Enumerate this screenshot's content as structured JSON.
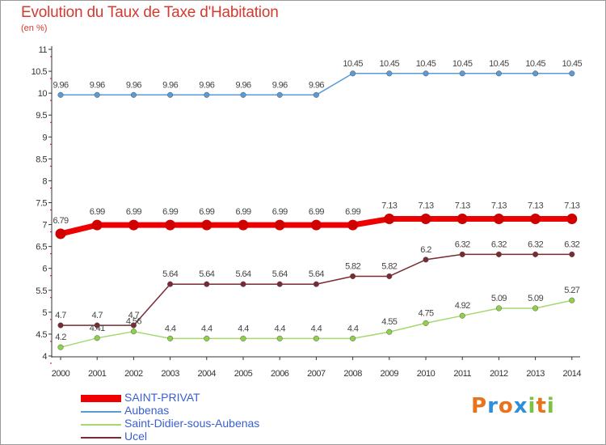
{
  "header": {
    "title": "Evolution du Taux de Taxe d'Habitation",
    "unit_label": "(en %)"
  },
  "chart_data": {
    "type": "line",
    "title": "Evolution du Taux de Taxe d'Habitation",
    "subtitle": "(en %)",
    "xlabel": "",
    "ylabel": "",
    "x": [
      "2000",
      "2001",
      "2002",
      "2003",
      "2004",
      "2005",
      "2006",
      "2007",
      "2008",
      "2009",
      "2010",
      "2011",
      "2012",
      "2013",
      "2014"
    ],
    "ylim": [
      4,
      11
    ],
    "yticks": [
      4,
      4.5,
      5,
      5.5,
      6,
      6.5,
      7,
      7.5,
      8,
      8.5,
      9,
      9.5,
      10,
      10.5,
      11
    ],
    "ytick_labels": [
      "4",
      "4.5",
      "5",
      "5.5",
      "6",
      "6.5",
      "7",
      "7.5",
      "8",
      "8.5",
      "9",
      "9.5",
      "10",
      "10.5",
      "11"
    ],
    "grid": false,
    "legend_position": "bottom-left",
    "series": [
      {
        "name": "Aubenas",
        "color": "#5b9bd5",
        "marker_fill": "#5b9bd5",
        "values": [
          9.96,
          9.96,
          9.96,
          9.96,
          9.96,
          9.96,
          9.96,
          9.96,
          10.45,
          10.45,
          10.45,
          10.45,
          10.45,
          10.45,
          10.45
        ],
        "labels": [
          "9.96",
          "9.96",
          "9.96",
          "9.96",
          "9.96",
          "9.96",
          "9.96",
          "9.96",
          "10.45",
          "10.45",
          "10.45",
          "10.45",
          "10.45",
          "10.45",
          "10.45"
        ]
      },
      {
        "name": "Saint-Didier-sous-Aubenas",
        "color": "#a6d86e",
        "marker_fill": "#8ed04a",
        "values": [
          4.2,
          4.41,
          4.56,
          4.4,
          4.4,
          4.4,
          4.4,
          4.4,
          4.4,
          4.55,
          4.75,
          4.92,
          5.09,
          5.09,
          5.27
        ],
        "labels": [
          "4.2",
          "4.41",
          "4.56",
          "4.4",
          "4.4",
          "4.4",
          "4.4",
          "4.4",
          "4.4",
          "4.55",
          "4.75",
          "4.92",
          "5.09",
          "5.09",
          "5.27"
        ]
      },
      {
        "name": "Ucel",
        "color": "#7a2a32",
        "marker_fill": "#7a2a32",
        "values": [
          4.7,
          4.7,
          4.7,
          5.64,
          5.64,
          5.64,
          5.64,
          5.64,
          5.82,
          5.82,
          6.2,
          6.32,
          6.32,
          6.32,
          6.32
        ],
        "labels": [
          "4.7",
          "4.7",
          "4.7",
          "5.64",
          "5.64",
          "5.64",
          "5.64",
          "5.64",
          "5.82",
          "5.82",
          "6.2",
          "6.32",
          "6.32",
          "6.32",
          "6.32"
        ]
      },
      {
        "name": "SAINT-PRIVAT",
        "color": "#ee0000",
        "marker_fill": "#d00000",
        "values": [
          6.79,
          6.99,
          6.99,
          6.99,
          6.99,
          6.99,
          6.99,
          6.99,
          6.99,
          7.13,
          7.13,
          7.13,
          7.13,
          7.13,
          7.13
        ],
        "labels": [
          "6.79",
          "6.99",
          "6.99",
          "6.99",
          "6.99",
          "6.99",
          "6.99",
          "6.99",
          "6.99",
          "7.13",
          "7.13",
          "7.13",
          "7.13",
          "7.13",
          "7.13"
        ]
      }
    ]
  },
  "legend": [
    {
      "label": "SAINT-PRIVAT",
      "color": "#ee0000"
    },
    {
      "label": "Aubenas",
      "color": "#5b9bd5"
    },
    {
      "label": "Saint-Didier-sous-Aubenas",
      "color": "#a6d86e"
    },
    {
      "label": "Ucel",
      "color": "#7a2a32"
    }
  ],
  "logo": {
    "letters": [
      "P",
      "r",
      "o",
      "x",
      "i",
      "t",
      "i"
    ],
    "colors": [
      "#e8731c",
      "#2f8fd8",
      "#e8731c",
      "#2f8fd8",
      "#7cc242",
      "#e8731c",
      "#7cc242"
    ]
  }
}
